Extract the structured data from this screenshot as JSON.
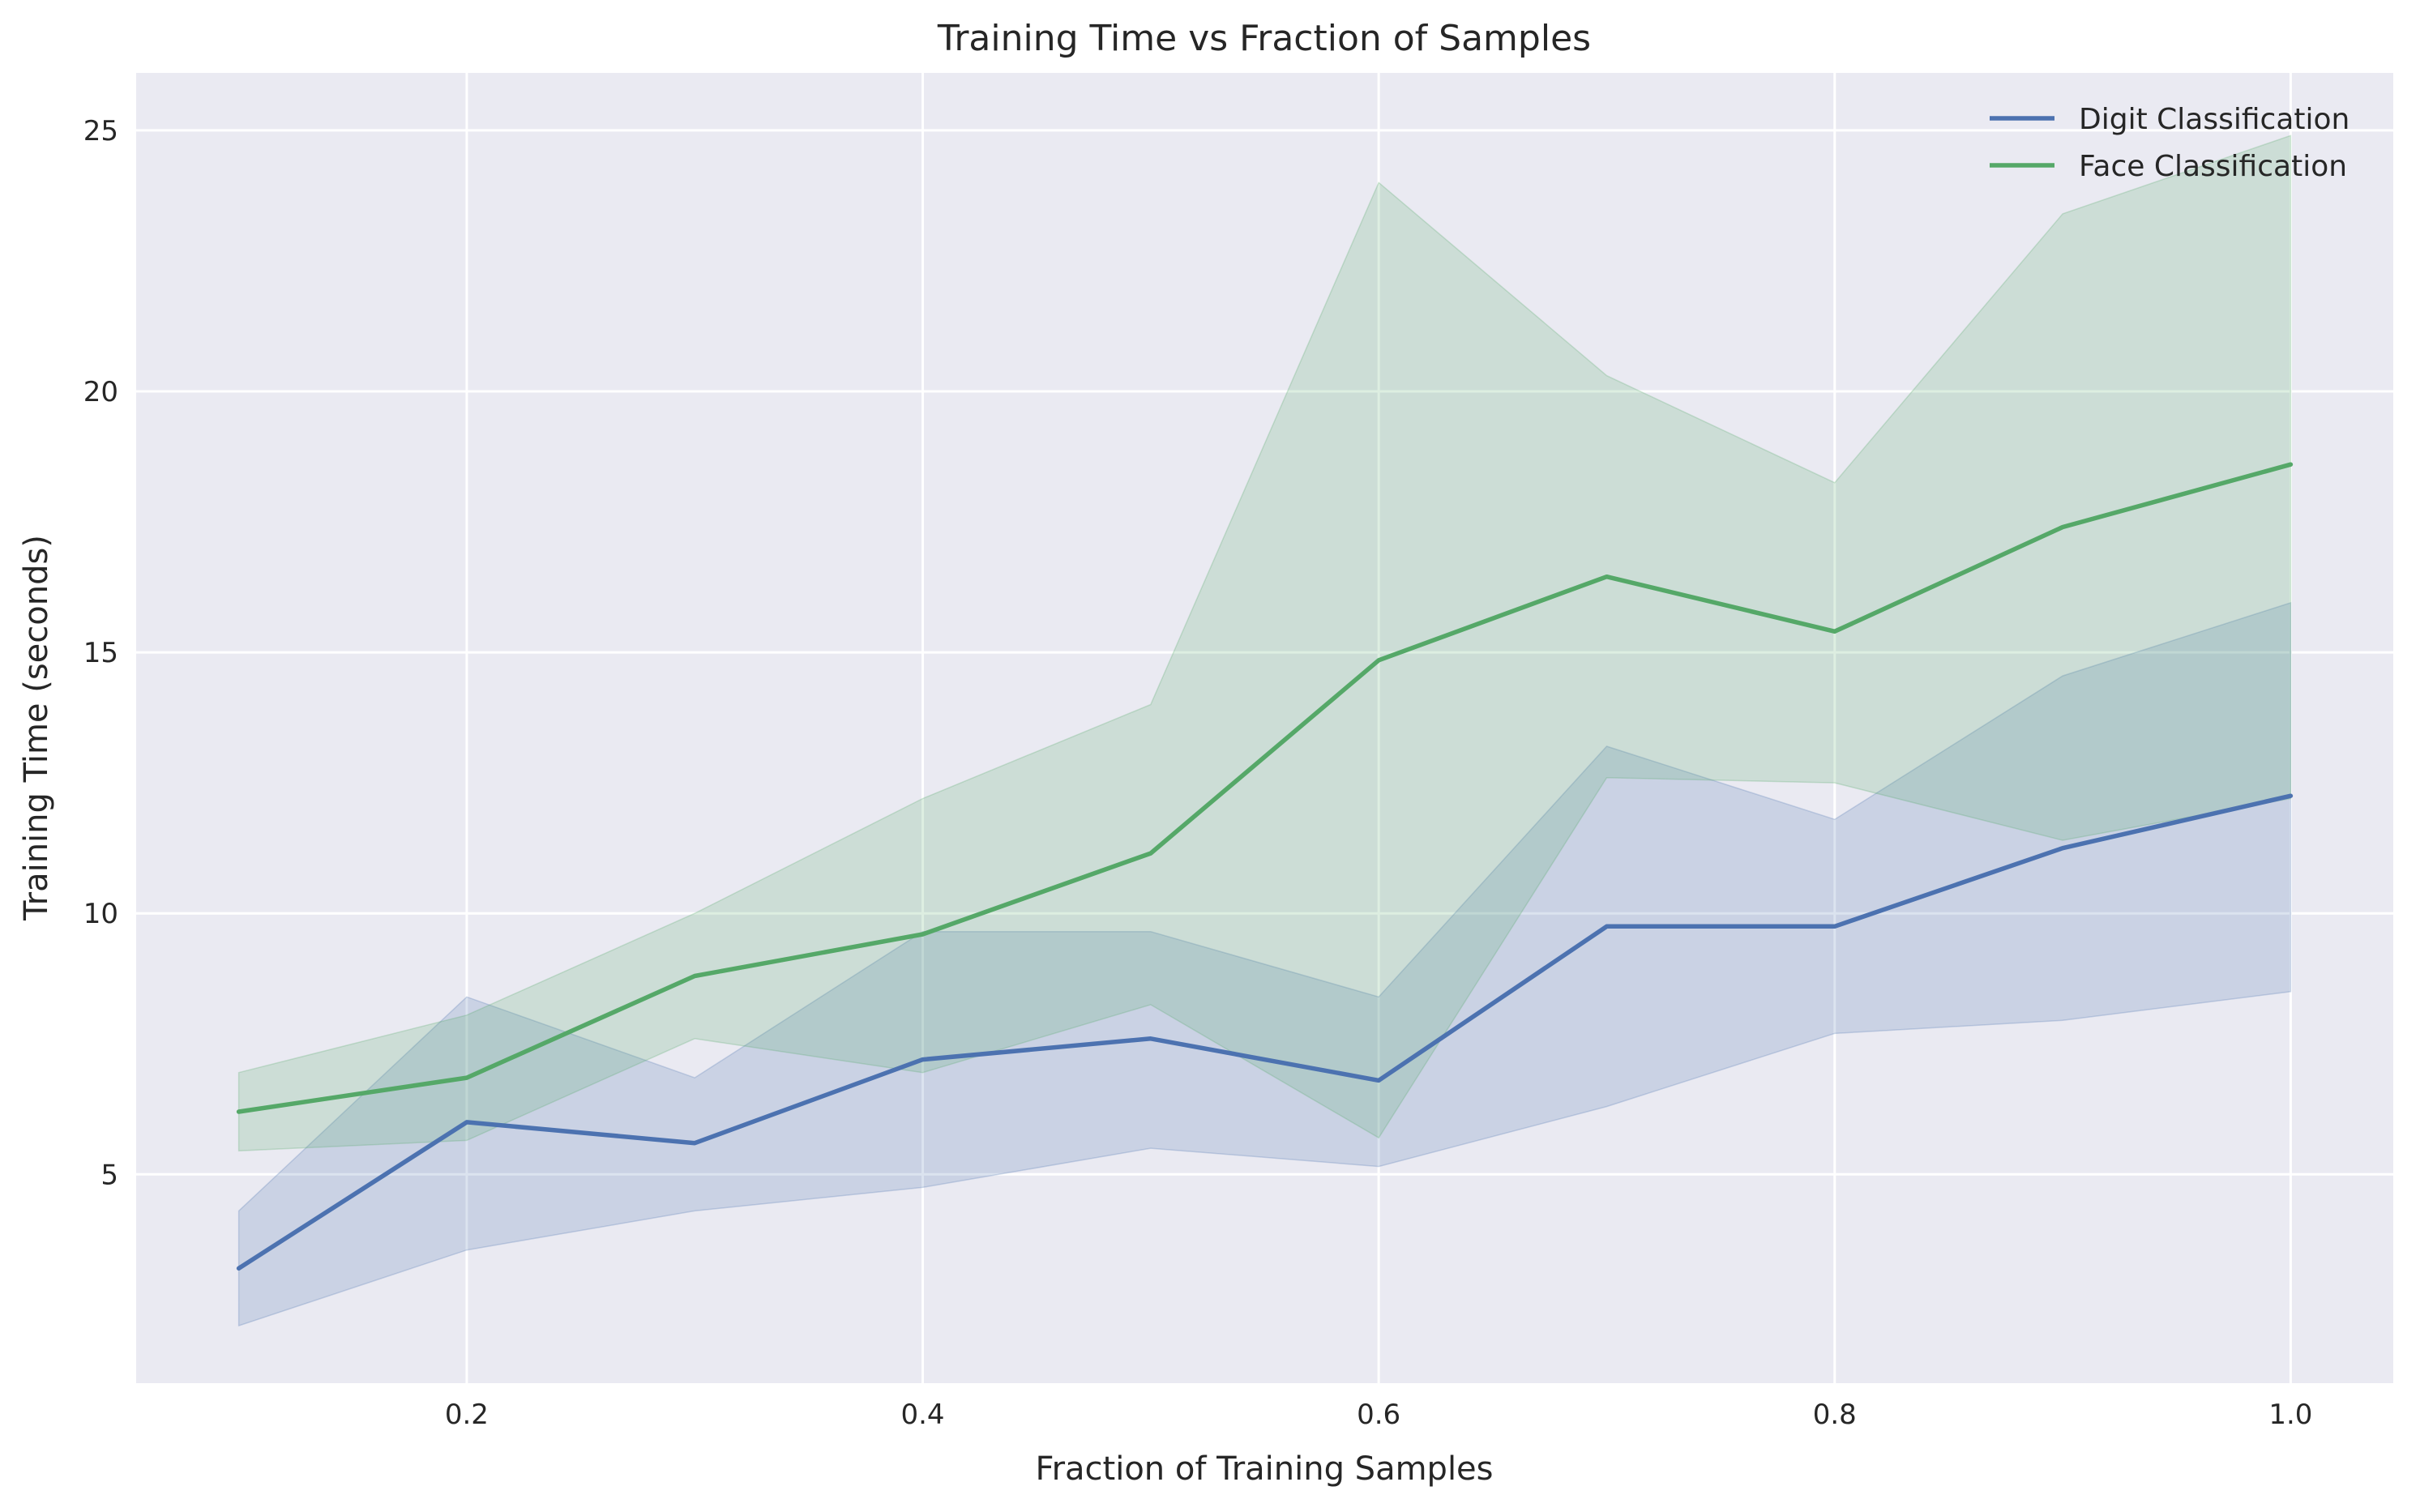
{
  "chart_data": {
    "type": "line",
    "title": "Training Time vs Fraction of Samples",
    "xlabel": "Fraction of Training Samples",
    "ylabel": "Training Time (seconds)",
    "xlim": [
      0.055,
      1.045
    ],
    "ylim": [
      1.0,
      26.1
    ],
    "xticks": [
      0.2,
      0.4,
      0.6,
      0.8,
      1.0
    ],
    "xtick_labels": [
      "0.2",
      "0.4",
      "0.6",
      "0.8",
      "1.0"
    ],
    "yticks": [
      5,
      10,
      15,
      20,
      25
    ],
    "ytick_labels": [
      "5",
      "10",
      "15",
      "20",
      "25"
    ],
    "grid": true,
    "legend_position": "top-right",
    "background": "#eaeaf2",
    "x": [
      0.1,
      0.2,
      0.3,
      0.4,
      0.5,
      0.6,
      0.7,
      0.8,
      0.9,
      1.0
    ],
    "series": [
      {
        "name": "Digit Classification",
        "color": "#4c72b0",
        "values": [
          3.2,
          6.0,
          5.6,
          7.2,
          7.6,
          6.8,
          9.75,
          9.75,
          11.25,
          12.25
        ],
        "lower": [
          2.1,
          3.55,
          4.3,
          4.75,
          5.5,
          5.15,
          6.3,
          7.7,
          7.95,
          8.5
        ],
        "upper": [
          4.3,
          8.4,
          6.85,
          9.65,
          9.65,
          8.4,
          13.2,
          11.8,
          14.55,
          15.95
        ]
      },
      {
        "name": "Face Classification",
        "color": "#55a868",
        "values": [
          6.2,
          6.85,
          8.8,
          9.6,
          11.15,
          14.85,
          16.45,
          15.4,
          17.4,
          18.6
        ],
        "lower": [
          5.45,
          5.65,
          7.6,
          6.95,
          8.25,
          5.7,
          12.6,
          12.5,
          11.4,
          12.2
        ],
        "upper": [
          6.95,
          8.05,
          10.0,
          12.2,
          14.0,
          24.0,
          20.3,
          18.25,
          23.4,
          24.9
        ]
      }
    ]
  }
}
